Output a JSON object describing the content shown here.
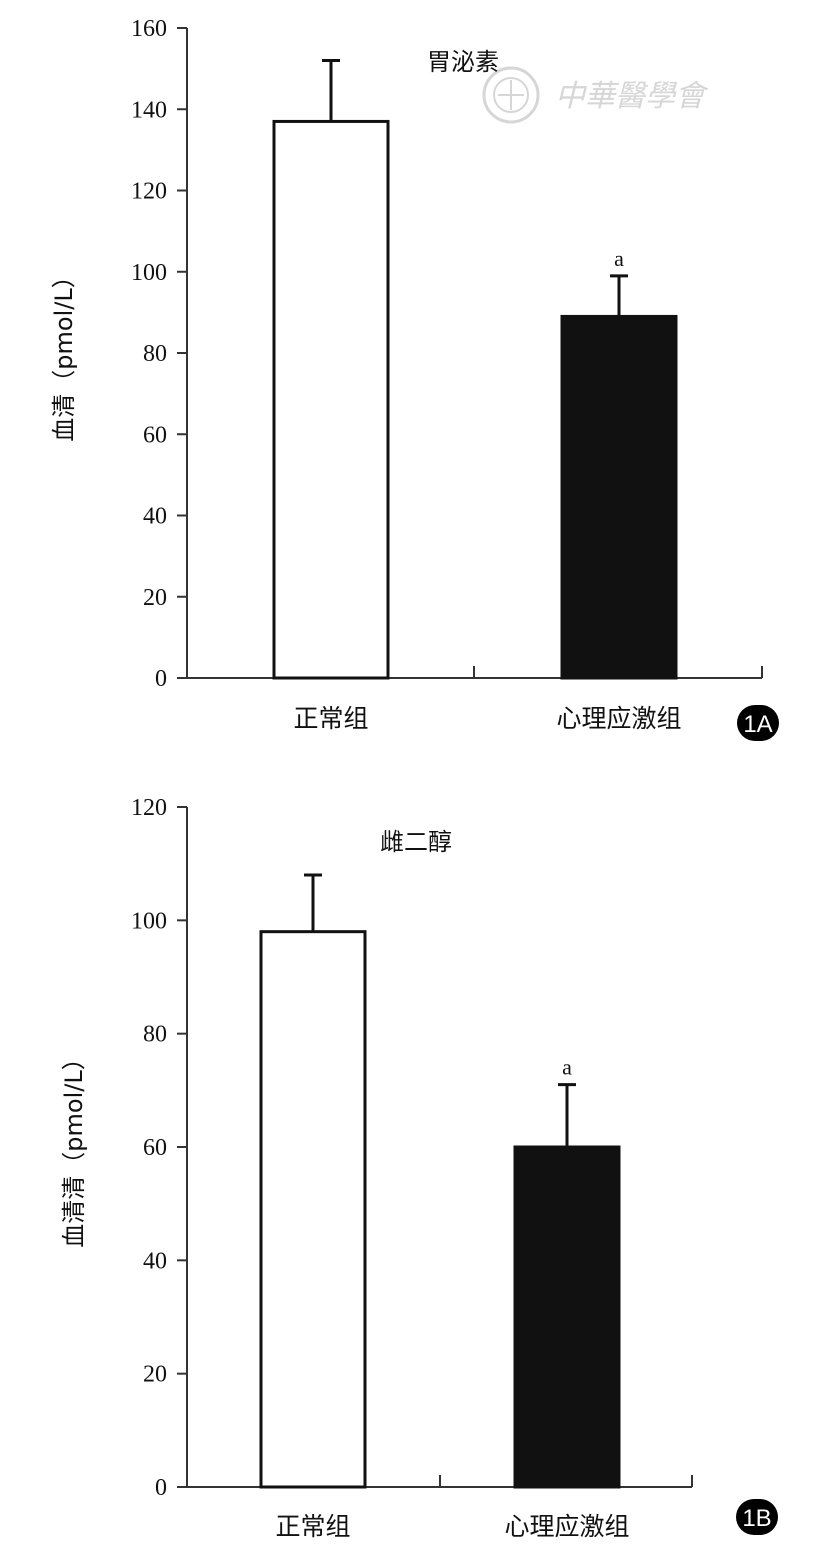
{
  "colors": {
    "normal_bar": "#ffffff",
    "stress_bar": "#111111",
    "axis": "#333333",
    "watermark": "#d6d6d6"
  },
  "watermark": {
    "text": "中華醫學會",
    "icon": "emblem-seal-icon"
  },
  "chart_data": [
    {
      "panel": "1A",
      "type": "bar",
      "title": "胃泌素",
      "ylabel": "血清（pmol/L）",
      "xlabel": "",
      "ylim": [
        0,
        160
      ],
      "yticks": [
        0,
        20,
        40,
        60,
        80,
        100,
        120,
        140,
        160
      ],
      "categories": [
        "正常组",
        "心理应激组"
      ],
      "values": [
        137,
        89
      ],
      "error": [
        15,
        10
      ],
      "annotations": [
        "",
        "a"
      ],
      "grid": false
    },
    {
      "panel": "1B",
      "type": "bar",
      "title": "雌二醇",
      "ylabel": "血清清（pmol/L）",
      "xlabel": "",
      "ylim": [
        0,
        120
      ],
      "yticks": [
        0,
        20,
        40,
        60,
        80,
        100,
        120
      ],
      "categories": [
        "正常组",
        "心理应激组"
      ],
      "values": [
        98,
        60
      ],
      "error": [
        10,
        11
      ],
      "annotations": [
        "",
        "a"
      ],
      "grid": false
    }
  ]
}
